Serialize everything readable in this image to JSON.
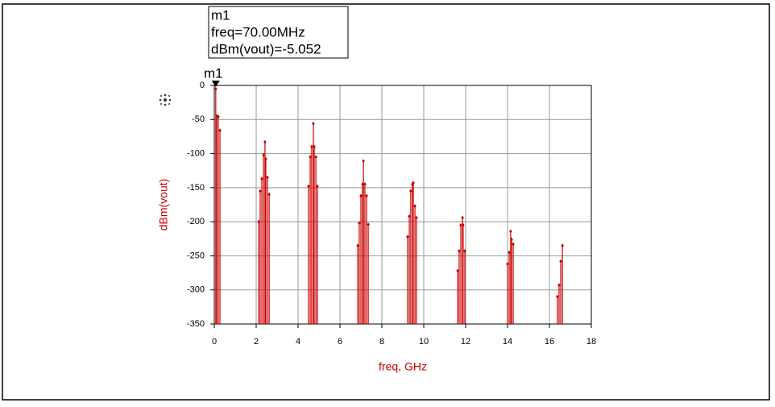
{
  "chart_data": {
    "type": "stem",
    "marker": {
      "name": "m1",
      "lines": [
        "m1",
        "freq=70.00MHz",
        "dBm(vout)=-5.052"
      ]
    },
    "xlabel": "freq, GHz",
    "ylabel": "dBm(vout)",
    "color": "#cc0000",
    "grid": true,
    "x": [
      0.07,
      0.12,
      0.19,
      0.27,
      2.12,
      2.19,
      2.27,
      2.35,
      2.42,
      2.46,
      2.54,
      2.62,
      4.5,
      4.58,
      4.65,
      4.73,
      4.77,
      4.85,
      4.92,
      6.85,
      6.92,
      7.0,
      7.08,
      7.12,
      7.19,
      7.27,
      7.35,
      9.23,
      9.31,
      9.38,
      9.46,
      9.5,
      9.58,
      9.65,
      11.62,
      11.69,
      11.77,
      11.85,
      11.88,
      11.96,
      14.0,
      14.08,
      14.15,
      14.19,
      14.27,
      16.38,
      16.46,
      16.54,
      16.62
    ],
    "values": [
      -5.052,
      -45,
      -46,
      -66,
      -200,
      -155,
      -137,
      -102,
      -83,
      -108,
      -135,
      -160,
      -148,
      -105,
      -90,
      -56,
      -90,
      -105,
      -148,
      -235,
      -202,
      -162,
      -145,
      -111,
      -145,
      -162,
      -204,
      -222,
      -192,
      -155,
      -145,
      -143,
      -177,
      -194,
      -272,
      -243,
      -205,
      -194,
      -205,
      -243,
      -262,
      -245,
      -214,
      -226,
      -233,
      -310,
      -293,
      -258,
      -235
    ],
    "xlim": [
      0,
      18
    ],
    "xticks": [
      0,
      2,
      4,
      6,
      8,
      10,
      12,
      14,
      16,
      18
    ],
    "ylim": [
      -350,
      0
    ],
    "yticks": [
      -350,
      -300,
      -250,
      -200,
      -150,
      -100,
      -50,
      0
    ]
  }
}
